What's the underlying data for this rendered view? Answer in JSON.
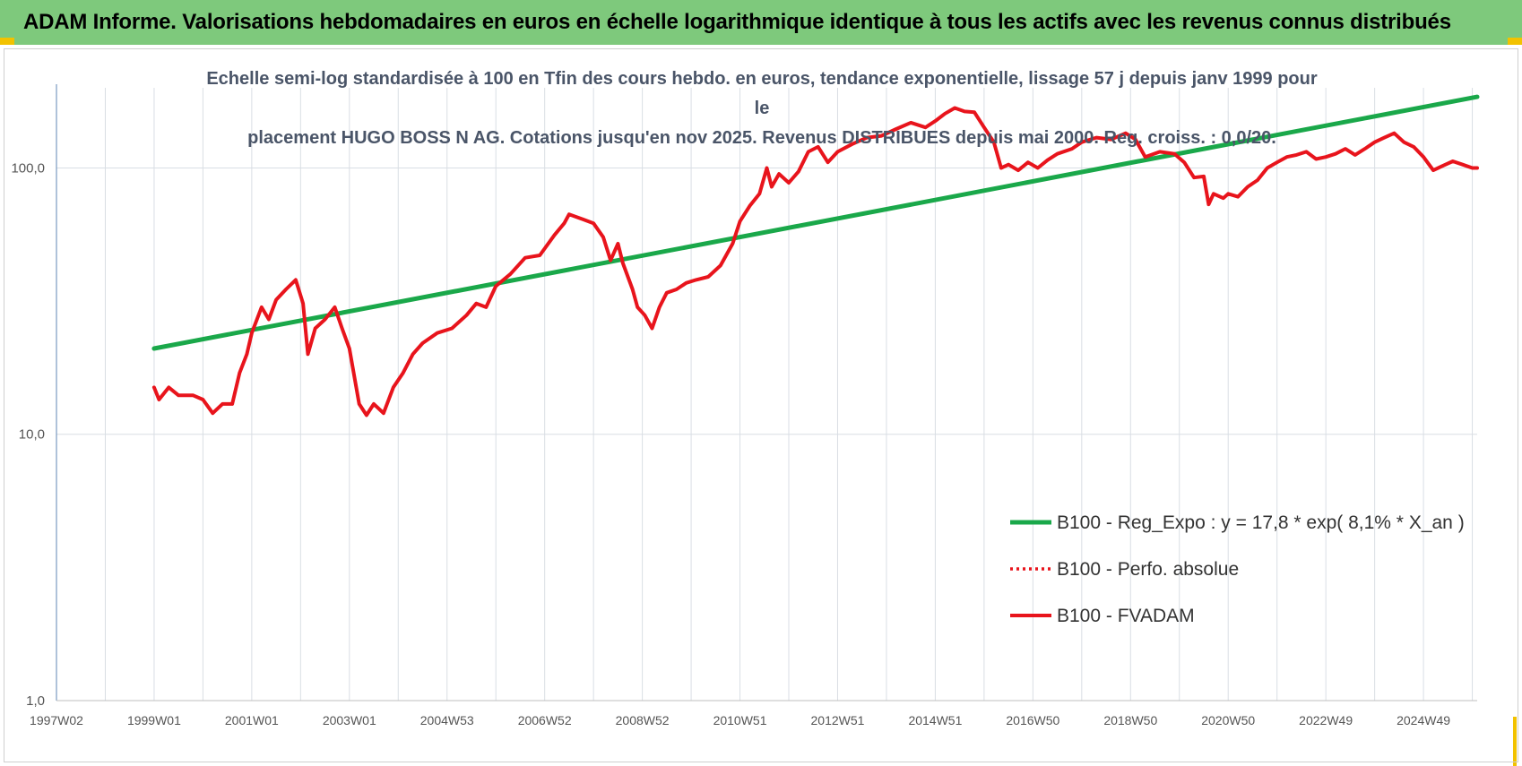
{
  "banner": {
    "title": "ADAM Informe. Valorisations hebdomadaires en euros en échelle logarithmique identique à tous les actifs avec les revenus connus distribués"
  },
  "colors": {
    "banner_bg": "#7ec97c",
    "corner_accent": "#f2c200",
    "trend_line": "#1aa84a",
    "fvadam_line": "#e8141c",
    "perf_absolue_line": "#e8141c",
    "grid": "#d9dee4",
    "axis": "#7a9ac0"
  },
  "chart_data": {
    "type": "line",
    "title_lines": [
      "Echelle semi-log standardisée à 100 en Tfin des cours hebdo. en euros, tendance exponentielle, lissage 57 j depuis janv 1999 pour le",
      "placement HUGO BOSS N AG. Cotations jusqu'en nov 2025.  Revenus DISTRIBUES  depuis mai 2000. Reg.  croiss. : 0,0/20."
    ],
    "y_scale": "log",
    "ylim": [
      1,
      200
    ],
    "y_ticks": [
      {
        "value": 1,
        "label": "1,0"
      },
      {
        "value": 10,
        "label": "10,0"
      },
      {
        "value": 100,
        "label": "100,0"
      }
    ],
    "xlim": [
      1997.0,
      2026.1
    ],
    "x_ticks": [
      {
        "value": 1997.0,
        "label": "1997W02"
      },
      {
        "value": 1999.0,
        "label": "1999W01"
      },
      {
        "value": 2001.0,
        "label": "2001W01"
      },
      {
        "value": 2003.0,
        "label": "2003W01"
      },
      {
        "value": 2005.0,
        "label": "2004W53"
      },
      {
        "value": 2007.0,
        "label": "2006W52"
      },
      {
        "value": 2009.0,
        "label": "2008W52"
      },
      {
        "value": 2011.0,
        "label": "2010W51"
      },
      {
        "value": 2013.0,
        "label": "2012W51"
      },
      {
        "value": 2015.0,
        "label": "2014W51"
      },
      {
        "value": 2017.0,
        "label": "2016W50"
      },
      {
        "value": 2019.0,
        "label": "2018W50"
      },
      {
        "value": 2021.0,
        "label": "2020W50"
      },
      {
        "value": 2023.0,
        "label": "2022W49"
      },
      {
        "value": 2025.0,
        "label": "2024W49"
      }
    ],
    "grid": true,
    "legend_position": "bottom-right",
    "series": [
      {
        "name": "B100 - Reg_Expo : y = 17,8 * exp( 8,1% *  X_an )",
        "style": "solid",
        "points": [
          [
            1999.0,
            21
          ],
          [
            2026.1,
            185
          ]
        ]
      },
      {
        "name": "B100 - Perfo. absolue",
        "style": "dotted",
        "points": []
      },
      {
        "name": "B100 - FVADAM",
        "style": "solid",
        "points": [
          [
            1999.0,
            15
          ],
          [
            1999.1,
            13.5
          ],
          [
            1999.3,
            15
          ],
          [
            1999.5,
            14
          ],
          [
            1999.8,
            14
          ],
          [
            2000.0,
            13.5
          ],
          [
            2000.2,
            12
          ],
          [
            2000.4,
            13
          ],
          [
            2000.6,
            13
          ],
          [
            2000.75,
            17
          ],
          [
            2000.9,
            20
          ],
          [
            2001.0,
            24
          ],
          [
            2001.2,
            30
          ],
          [
            2001.35,
            27
          ],
          [
            2001.5,
            32
          ],
          [
            2001.7,
            35
          ],
          [
            2001.9,
            38
          ],
          [
            2002.05,
            31
          ],
          [
            2002.15,
            20
          ],
          [
            2002.3,
            25
          ],
          [
            2002.5,
            27
          ],
          [
            2002.7,
            30
          ],
          [
            2002.85,
            25
          ],
          [
            2003.0,
            21
          ],
          [
            2003.2,
            13
          ],
          [
            2003.35,
            11.8
          ],
          [
            2003.5,
            13
          ],
          [
            2003.7,
            12
          ],
          [
            2003.9,
            15
          ],
          [
            2004.1,
            17
          ],
          [
            2004.3,
            20
          ],
          [
            2004.5,
            22
          ],
          [
            2004.8,
            24
          ],
          [
            2005.1,
            25
          ],
          [
            2005.4,
            28
          ],
          [
            2005.6,
            31
          ],
          [
            2005.8,
            30
          ],
          [
            2006.0,
            36
          ],
          [
            2006.3,
            40
          ],
          [
            2006.6,
            46
          ],
          [
            2006.9,
            47
          ],
          [
            2007.2,
            56
          ],
          [
            2007.4,
            62
          ],
          [
            2007.5,
            67
          ],
          [
            2007.8,
            64
          ],
          [
            2008.0,
            62
          ],
          [
            2008.2,
            55
          ],
          [
            2008.35,
            45
          ],
          [
            2008.5,
            52
          ],
          [
            2008.6,
            44
          ],
          [
            2008.8,
            35
          ],
          [
            2008.9,
            30
          ],
          [
            2009.05,
            28
          ],
          [
            2009.2,
            25
          ],
          [
            2009.35,
            30
          ],
          [
            2009.5,
            34
          ],
          [
            2009.7,
            35
          ],
          [
            2009.9,
            37
          ],
          [
            2010.1,
            38
          ],
          [
            2010.35,
            39
          ],
          [
            2010.6,
            43
          ],
          [
            2010.85,
            52
          ],
          [
            2011.0,
            63
          ],
          [
            2011.2,
            72
          ],
          [
            2011.4,
            80
          ],
          [
            2011.55,
            100
          ],
          [
            2011.65,
            85
          ],
          [
            2011.8,
            95
          ],
          [
            2012.0,
            88
          ],
          [
            2012.2,
            97
          ],
          [
            2012.4,
            115
          ],
          [
            2012.6,
            120
          ],
          [
            2012.8,
            105
          ],
          [
            2013.0,
            115
          ],
          [
            2013.3,
            123
          ],
          [
            2013.6,
            130
          ],
          [
            2013.9,
            132
          ],
          [
            2014.2,
            140
          ],
          [
            2014.5,
            148
          ],
          [
            2014.8,
            142
          ],
          [
            2015.0,
            150
          ],
          [
            2015.2,
            160
          ],
          [
            2015.4,
            168
          ],
          [
            2015.6,
            163
          ],
          [
            2015.8,
            162
          ],
          [
            2016.0,
            142
          ],
          [
            2016.2,
            125
          ],
          [
            2016.35,
            100
          ],
          [
            2016.5,
            103
          ],
          [
            2016.7,
            98
          ],
          [
            2016.9,
            105
          ],
          [
            2017.1,
            100
          ],
          [
            2017.3,
            107
          ],
          [
            2017.5,
            113
          ],
          [
            2017.8,
            118
          ],
          [
            2018.0,
            125
          ],
          [
            2018.3,
            130
          ],
          [
            2018.6,
            128
          ],
          [
            2018.9,
            135
          ],
          [
            2019.1,
            128
          ],
          [
            2019.3,
            110
          ],
          [
            2019.6,
            115
          ],
          [
            2019.9,
            113
          ],
          [
            2020.1,
            105
          ],
          [
            2020.3,
            92
          ],
          [
            2020.5,
            93
          ],
          [
            2020.6,
            73
          ],
          [
            2020.7,
            80
          ],
          [
            2020.9,
            77
          ],
          [
            2021.0,
            80
          ],
          [
            2021.2,
            78
          ],
          [
            2021.4,
            85
          ],
          [
            2021.6,
            90
          ],
          [
            2021.8,
            100
          ],
          [
            2022.0,
            105
          ],
          [
            2022.2,
            110
          ],
          [
            2022.4,
            112
          ],
          [
            2022.6,
            115
          ],
          [
            2022.8,
            108
          ],
          [
            2023.0,
            110
          ],
          [
            2023.2,
            113
          ],
          [
            2023.4,
            118
          ],
          [
            2023.6,
            112
          ],
          [
            2023.8,
            118
          ],
          [
            2024.0,
            125
          ],
          [
            2024.2,
            130
          ],
          [
            2024.4,
            135
          ],
          [
            2024.6,
            125
          ],
          [
            2024.8,
            120
          ],
          [
            2025.0,
            110
          ],
          [
            2025.2,
            98
          ],
          [
            2025.4,
            102
          ],
          [
            2025.6,
            106
          ],
          [
            2025.8,
            103
          ],
          [
            2026.0,
            100
          ],
          [
            2026.1,
            100
          ]
        ]
      }
    ]
  }
}
